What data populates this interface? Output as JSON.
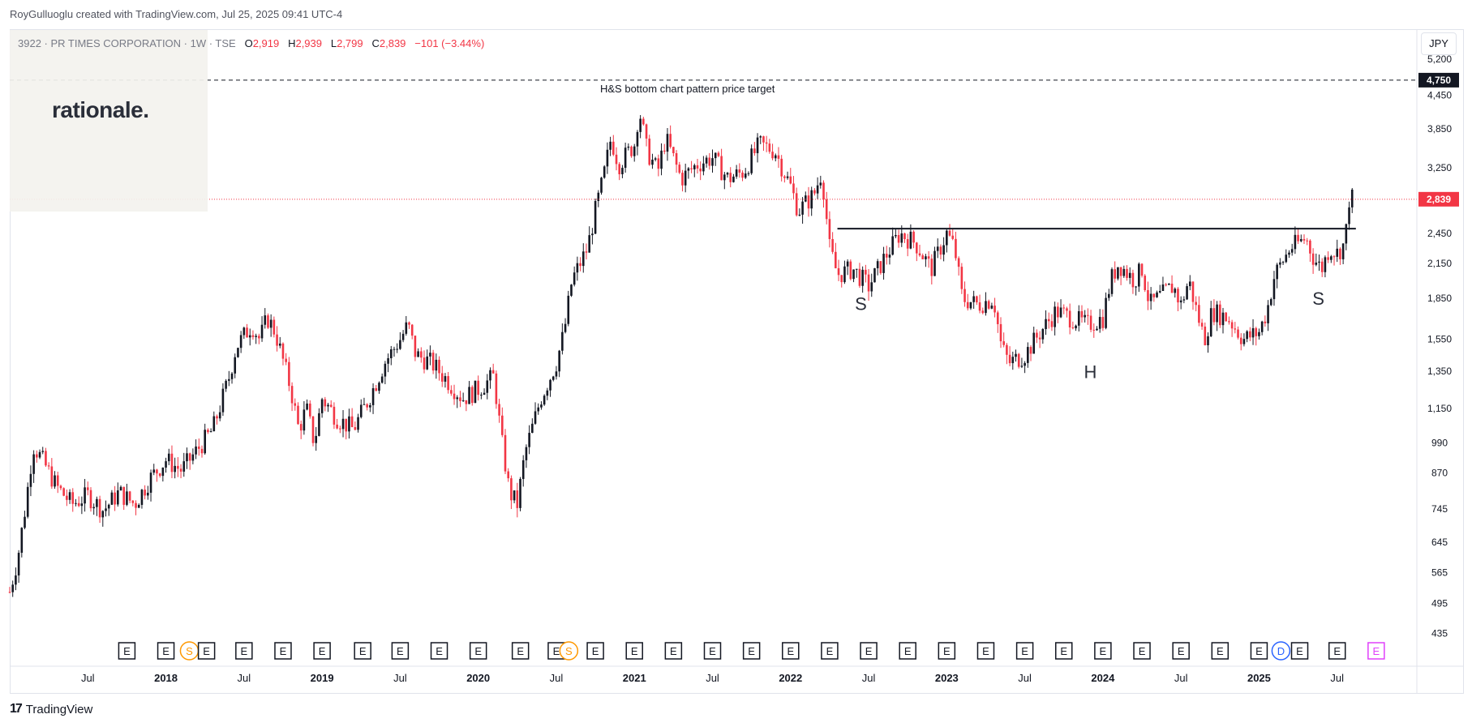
{
  "header": {
    "credit": "RoyGulluoglu created with TradingView.com, Jul 25, 2025 09:41 UTC-4"
  },
  "symbol": {
    "name": "3922 · PR TIMES CORPORATION · 1W · TSE",
    "o_label": "O",
    "o_value": "2,919",
    "h_label": "H",
    "h_value": "2,939",
    "l_label": "L",
    "l_value": "2,799",
    "c_label": "C",
    "c_value": "2,839",
    "change": "−101 (−3.44%)"
  },
  "logo": {
    "text": "rationale."
  },
  "currency": "JPY",
  "footer": {
    "brand": "TradingView",
    "icon": "tradingview-logo-icon"
  },
  "colors": {
    "up": "#131722",
    "down": "#f23645",
    "target_line": "#131722",
    "neckline": "#131722",
    "current_price_bg": "#f23645",
    "target_bg": "#131722"
  },
  "chart_data": {
    "type": "candlestick",
    "scale": "log",
    "ylim": [
      400,
      6000
    ],
    "y_ticks": [
      "5,200",
      "4,450",
      "3,850",
      "3,250",
      "2,450",
      "2,150",
      "1,850",
      "1,550",
      "1,350",
      "1,150",
      "990",
      "870",
      "745",
      "645",
      "565",
      "495",
      "435"
    ],
    "x_ticks": [
      "Jul",
      "2018",
      "Jul",
      "2019",
      "Jul",
      "2020",
      "Jul",
      "2021",
      "Jul",
      "2022",
      "Jul",
      "2023",
      "Jul",
      "2024",
      "Jul",
      "2025",
      "Jul"
    ],
    "x_tick_dates": [
      2017.5,
      2018.0,
      2018.5,
      2019.0,
      2019.5,
      2020.0,
      2020.5,
      2021.0,
      2021.5,
      2022.0,
      2022.5,
      2023.0,
      2023.5,
      2024.0,
      2024.5,
      2025.0,
      2025.5
    ],
    "price_labels": {
      "target": {
        "value": 4750,
        "text": "4,750"
      },
      "current": {
        "value": 2839,
        "text": "2,839"
      }
    },
    "target_line_label": "H&S bottom chart pattern price target",
    "neckline": {
      "value": 2500,
      "from": 2022.3,
      "to": 2025.62
    },
    "annotations": [
      {
        "text": "S",
        "date": 2022.45,
        "price": 1760
      },
      {
        "text": "H",
        "date": 2023.92,
        "price": 1310
      },
      {
        "text": "S",
        "date": 2025.38,
        "price": 1800
      }
    ],
    "earnings_markers": [
      {
        "type": "E",
        "date": 2017.75
      },
      {
        "type": "E",
        "date": 2018.0
      },
      {
        "type": "S",
        "date": 2018.15
      },
      {
        "type": "E",
        "date": 2018.26
      },
      {
        "type": "E",
        "date": 2018.5
      },
      {
        "type": "E",
        "date": 2018.75
      },
      {
        "type": "E",
        "date": 2019.0
      },
      {
        "type": "E",
        "date": 2019.26
      },
      {
        "type": "E",
        "date": 2019.5
      },
      {
        "type": "E",
        "date": 2019.75
      },
      {
        "type": "E",
        "date": 2020.0
      },
      {
        "type": "E",
        "date": 2020.27
      },
      {
        "type": "E",
        "date": 2020.5
      },
      {
        "type": "S",
        "date": 2020.58
      },
      {
        "type": "E",
        "date": 2020.75
      },
      {
        "type": "E",
        "date": 2021.0
      },
      {
        "type": "E",
        "date": 2021.25
      },
      {
        "type": "E",
        "date": 2021.5
      },
      {
        "type": "E",
        "date": 2021.75
      },
      {
        "type": "E",
        "date": 2022.0
      },
      {
        "type": "E",
        "date": 2022.25
      },
      {
        "type": "E",
        "date": 2022.5
      },
      {
        "type": "E",
        "date": 2022.75
      },
      {
        "type": "E",
        "date": 2023.0
      },
      {
        "type": "E",
        "date": 2023.25
      },
      {
        "type": "E",
        "date": 2023.5
      },
      {
        "type": "E",
        "date": 2023.75
      },
      {
        "type": "E",
        "date": 2024.0
      },
      {
        "type": "E",
        "date": 2024.25
      },
      {
        "type": "E",
        "date": 2024.5
      },
      {
        "type": "E",
        "date": 2024.75
      },
      {
        "type": "E",
        "date": 2025.0
      },
      {
        "type": "D",
        "date": 2025.14
      },
      {
        "type": "E",
        "date": 2025.26
      },
      {
        "type": "E",
        "date": 2025.5
      },
      {
        "type": "E",
        "date": 2025.75
      }
    ],
    "series_path": [
      [
        2017.0,
        520
      ],
      [
        2017.05,
        600
      ],
      [
        2017.1,
        750
      ],
      [
        2017.15,
        980
      ],
      [
        2017.2,
        930
      ],
      [
        2017.3,
        820
      ],
      [
        2017.4,
        760
      ],
      [
        2017.5,
        790
      ],
      [
        2017.6,
        740
      ],
      [
        2017.7,
        800
      ],
      [
        2017.8,
        760
      ],
      [
        2017.9,
        850
      ],
      [
        2018.0,
        920
      ],
      [
        2018.1,
        880
      ],
      [
        2018.2,
        960
      ],
      [
        2018.3,
        1050
      ],
      [
        2018.4,
        1300
      ],
      [
        2018.45,
        1500
      ],
      [
        2018.55,
        1650
      ],
      [
        2018.6,
        1550
      ],
      [
        2018.65,
        1700
      ],
      [
        2018.7,
        1600
      ],
      [
        2018.8,
        1250
      ],
      [
        2018.85,
        1050
      ],
      [
        2018.9,
        1150
      ],
      [
        2018.95,
        990
      ],
      [
        2019.0,
        1200
      ],
      [
        2019.1,
        1100
      ],
      [
        2019.2,
        1050
      ],
      [
        2019.3,
        1200
      ],
      [
        2019.4,
        1400
      ],
      [
        2019.5,
        1550
      ],
      [
        2019.55,
        1650
      ],
      [
        2019.6,
        1450
      ],
      [
        2019.7,
        1400
      ],
      [
        2019.8,
        1300
      ],
      [
        2019.9,
        1200
      ],
      [
        2020.0,
        1250
      ],
      [
        2020.1,
        1320
      ],
      [
        2020.15,
        1000
      ],
      [
        2020.2,
        800
      ],
      [
        2020.25,
        760
      ],
      [
        2020.3,
        950
      ],
      [
        2020.4,
        1200
      ],
      [
        2020.5,
        1400
      ],
      [
        2020.55,
        1600
      ],
      [
        2020.6,
        2000
      ],
      [
        2020.7,
        2300
      ],
      [
        2020.75,
        2700
      ],
      [
        2020.8,
        3100
      ],
      [
        2020.85,
        3700
      ],
      [
        2020.9,
        3300
      ],
      [
        2021.0,
        3600
      ],
      [
        2021.03,
        4200
      ],
      [
        2021.08,
        3500
      ],
      [
        2021.15,
        3200
      ],
      [
        2021.2,
        3700
      ],
      [
        2021.3,
        3100
      ],
      [
        2021.4,
        3300
      ],
      [
        2021.5,
        3400
      ],
      [
        2021.6,
        3100
      ],
      [
        2021.7,
        3200
      ],
      [
        2021.8,
        3600
      ],
      [
        2021.9,
        3500
      ],
      [
        2022.0,
        3000
      ],
      [
        2022.05,
        2700
      ],
      [
        2022.15,
        2900
      ],
      [
        2022.2,
        3200
      ],
      [
        2022.25,
        2300
      ],
      [
        2022.3,
        2050
      ],
      [
        2022.4,
        2100
      ],
      [
        2022.5,
        1950
      ],
      [
        2022.6,
        2200
      ],
      [
        2022.7,
        2450
      ],
      [
        2022.8,
        2350
      ],
      [
        2022.9,
        2100
      ],
      [
        2023.0,
        2450
      ],
      [
        2023.05,
        2300
      ],
      [
        2023.1,
        1850
      ],
      [
        2023.2,
        1800
      ],
      [
        2023.3,
        1850
      ],
      [
        2023.35,
        1500
      ],
      [
        2023.4,
        1400
      ],
      [
        2023.5,
        1450
      ],
      [
        2023.6,
        1600
      ],
      [
        2023.7,
        1750
      ],
      [
        2023.8,
        1700
      ],
      [
        2023.9,
        1650
      ],
      [
        2024.0,
        1700
      ],
      [
        2024.05,
        2000
      ],
      [
        2024.1,
        2150
      ],
      [
        2024.2,
        2000
      ],
      [
        2024.25,
        2100
      ],
      [
        2024.3,
        1800
      ],
      [
        2024.4,
        1900
      ],
      [
        2024.45,
        1950
      ],
      [
        2024.5,
        1800
      ],
      [
        2024.55,
        2000
      ],
      [
        2024.6,
        1750
      ],
      [
        2024.65,
        1550
      ],
      [
        2024.7,
        1750
      ],
      [
        2024.8,
        1700
      ],
      [
        2024.9,
        1550
      ],
      [
        2025.0,
        1600
      ],
      [
        2025.05,
        1750
      ],
      [
        2025.1,
        2050
      ],
      [
        2025.2,
        2300
      ],
      [
        2025.3,
        2400
      ],
      [
        2025.35,
        2200
      ],
      [
        2025.4,
        2100
      ],
      [
        2025.45,
        2300
      ],
      [
        2025.5,
        2250
      ],
      [
        2025.55,
        2350
      ],
      [
        2025.58,
        2900
      ],
      [
        2025.6,
        2839
      ]
    ]
  }
}
